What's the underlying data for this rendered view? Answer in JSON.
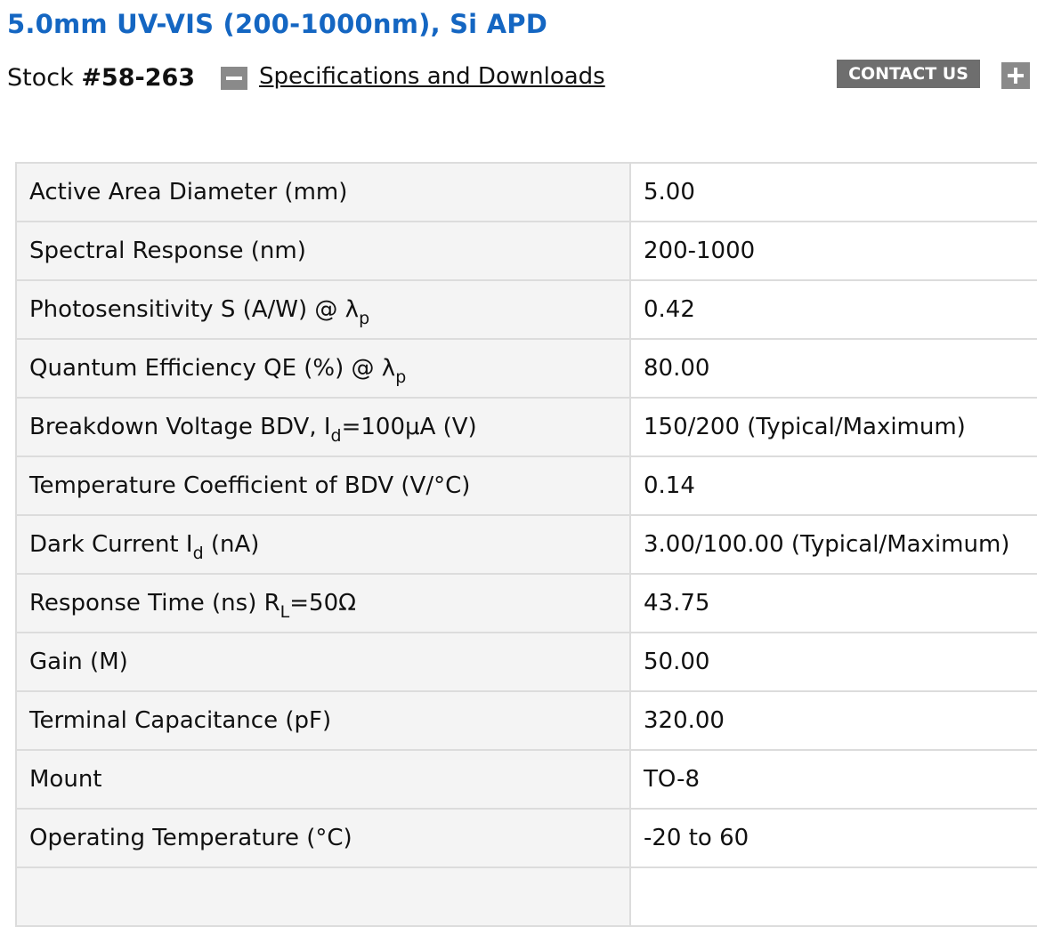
{
  "product": {
    "title": "5.0mm UV-VIS (200-1000nm), Si APD",
    "stock_label": "Stock ",
    "stock_number": "#58-263"
  },
  "actions": {
    "specifications_link": "Specifications and Downloads",
    "contact_button": "CONTACT US",
    "collapse_icon": "minus-icon",
    "expand_icon": "plus-icon"
  },
  "colors": {
    "title": "#1466c2",
    "button_bg": "#6e6e6e",
    "icon_bg": "#8a8a8a",
    "label_cell_bg": "#f4f4f4",
    "border": "#dcdcdc"
  },
  "specifications": [
    {
      "label": "Active Area Diameter (mm)",
      "value": "5.00"
    },
    {
      "label": "Spectral Response (nm)",
      "value": "200-1000"
    },
    {
      "label": "Photosensitivity S (A/W) @ λ",
      "label_sub": "p",
      "value": "0.42"
    },
    {
      "label": "Quantum Efficiency QE (%) @ λ",
      "label_sub": "p",
      "value": "80.00"
    },
    {
      "label": "Breakdown Voltage BDV, I",
      "label_sub": "d",
      "label_after": "=100μA (V)",
      "value": "150/200 (Typical/Maximum)"
    },
    {
      "label": "Temperature Coefficient of BDV (V/°C)",
      "value": "0.14"
    },
    {
      "label": "Dark Current I",
      "label_sub": "d",
      "label_after": " (nA)",
      "value": "3.00/100.00 (Typical/Maximum)"
    },
    {
      "label": "Response Time (ns) R",
      "label_sub": "L",
      "label_after": "=50Ω",
      "value": "43.75"
    },
    {
      "label": "Gain (M)",
      "value": "50.00"
    },
    {
      "label": "Terminal Capacitance (pF)",
      "value": "320.00"
    },
    {
      "label": "Mount",
      "value": "TO-8"
    },
    {
      "label": "Operating Temperature (°C)",
      "value": "-20 to 60"
    },
    {
      "label": "",
      "value": ""
    }
  ]
}
